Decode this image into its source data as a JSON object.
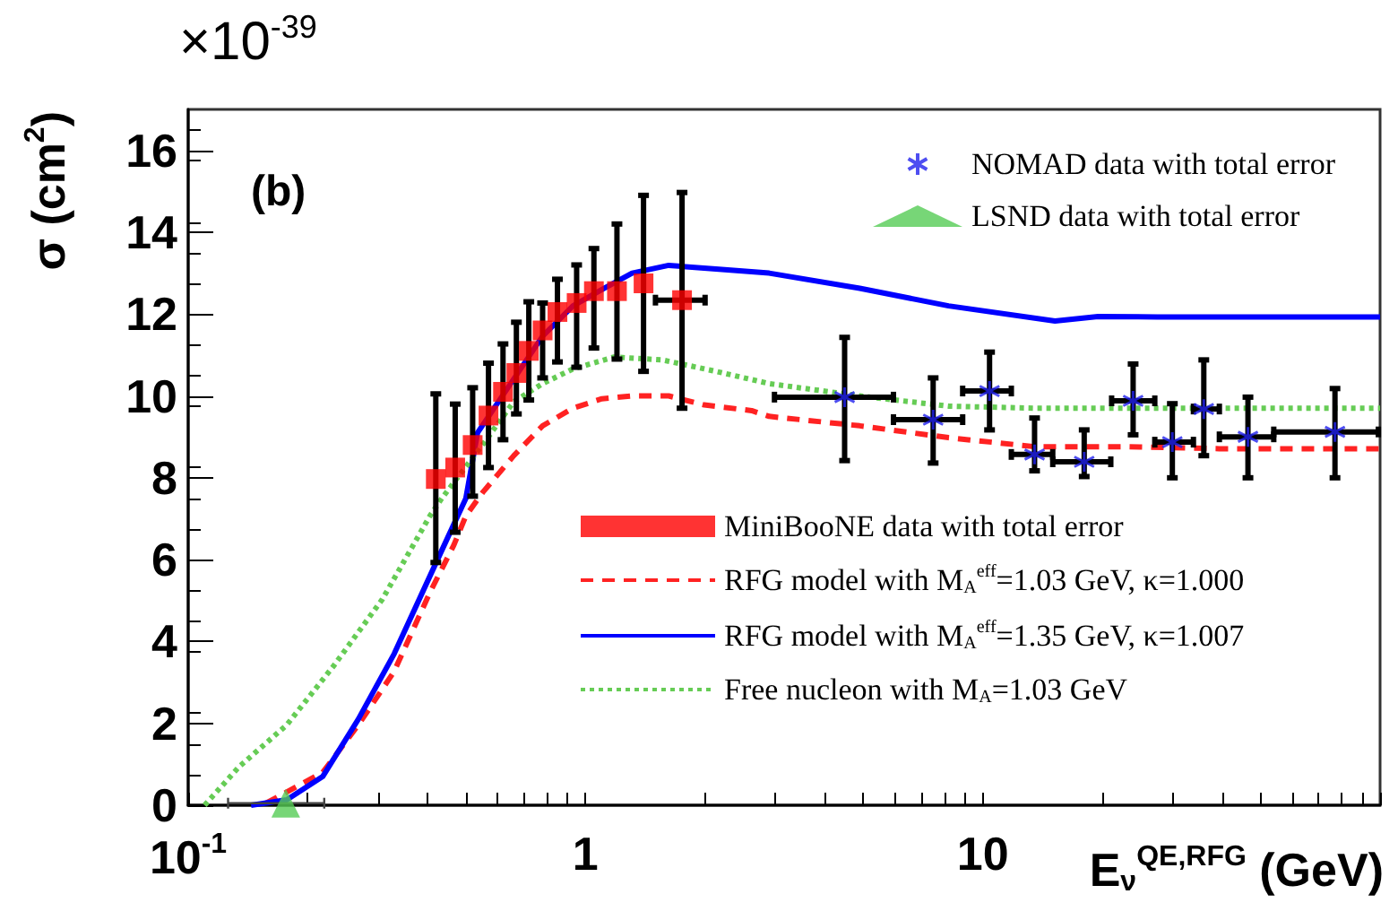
{
  "chart_data": {
    "type": "scatter",
    "xlabel": "E$_{ν}$$^{QE,RFG}$ (GeV)",
    "ylabel": "σ (cm$^{2}$)",
    "annotations": [
      "×10$^{-39}$",
      "(b)"
    ],
    "log": "x",
    "xlim": [
      0.1,
      100
    ],
    "xticks": [
      {
        "value": 0.1,
        "label": "10$^{-1}$"
      },
      {
        "value": 0.2,
        "label": null
      },
      {
        "value": 0.3,
        "label": null
      },
      {
        "value": 0.4,
        "label": null
      },
      {
        "value": 0.5,
        "label": null
      },
      {
        "value": 0.6,
        "label": null
      },
      {
        "value": 0.7,
        "label": null
      },
      {
        "value": 0.8,
        "label": null
      },
      {
        "value": 0.9,
        "label": null
      },
      1,
      {
        "value": 2,
        "label": null
      },
      {
        "value": 3,
        "label": null
      },
      {
        "value": 4,
        "label": null
      },
      {
        "value": 5,
        "label": null
      },
      {
        "value": 6,
        "label": null
      },
      {
        "value": 7,
        "label": null
      },
      {
        "value": 8,
        "label": null
      },
      {
        "value": 9,
        "label": null
      },
      10,
      {
        "value": 20,
        "label": null
      },
      {
        "value": 30,
        "label": null
      },
      {
        "value": 40,
        "label": null
      },
      {
        "value": 50,
        "label": null
      },
      {
        "value": 60,
        "label": null
      },
      {
        "value": 70,
        "label": null
      },
      {
        "value": 80,
        "label": null
      },
      {
        "value": 90,
        "label": null
      },
      {
        "value": 100,
        "label": null
      }
    ],
    "ylim": [
      0,
      17
    ],
    "yticks": [
      0,
      2,
      4,
      6,
      8,
      10,
      12,
      14,
      16
    ],
    "grid": false,
    "legend": "top right",
    "series": [
      {
        "name": "NOMAD data with total error",
        "marker": "cross",
        "color": "#2222ee",
        "x": [
          4.49,
          7.5,
          10.4,
          13.5,
          18.0,
          23.9,
          30.0,
          36.0,
          46.5,
          77
        ],
        "values": [
          9.97,
          9.42,
          10.12,
          8.57,
          8.39,
          9.88,
          8.87,
          9.68,
          9.0,
          9.12
        ],
        "errors": [
          [
            8.42,
            11.43
          ],
          [
            8.36,
            10.44
          ],
          [
            9.17,
            11.07
          ],
          [
            8.17,
            9.46
          ],
          [
            8.03,
            9.17
          ],
          [
            9.05,
            10.78
          ],
          [
            8.0,
            9.81
          ],
          [
            8.54,
            10.88
          ],
          [
            8.0,
            9.97
          ],
          [
            8.0,
            10.18
          ]
        ],
        "xerrors": [
          [
            2.99,
            5.96
          ],
          [
            5.96,
            8.9
          ],
          [
            8.9,
            11.8
          ],
          [
            11.8,
            15.0
          ],
          [
            15.0,
            21.0
          ],
          [
            21.1,
            27.1
          ],
          [
            27.1,
            33.9
          ],
          [
            33.9,
            39.4
          ],
          [
            39.4,
            54
          ],
          [
            54,
            99
          ]
        ]
      },
      {
        "name": "LSND data with total error",
        "marker": "triangle",
        "color": "#55cc55",
        "x": [
          0.176
        ],
        "values": [
          0.05
        ],
        "xerrors": [
          [
            0.126,
            0.22
          ]
        ]
      },
      {
        "name": "MiniBooNE data with total error",
        "marker": "square",
        "color": "#ff0000",
        "x": [
          0.42,
          0.47,
          0.52,
          0.57,
          0.62,
          0.67,
          0.72,
          0.78,
          0.85,
          0.95,
          1.05,
          1.2,
          1.4,
          1.75
        ],
        "values": [
          7.97,
          8.25,
          8.8,
          9.52,
          10.1,
          10.56,
          11.1,
          11.6,
          12.05,
          12.27,
          12.56,
          12.56,
          12.75,
          12.34
        ],
        "errors": [
          [
            5.93,
            10.05
          ],
          [
            6.67,
            9.8
          ],
          [
            7.55,
            10.2
          ],
          [
            8.25,
            10.8
          ],
          [
            8.93,
            11.27
          ],
          [
            9.56,
            11.8
          ],
          [
            9.9,
            12.3
          ],
          [
            10.44,
            12.27
          ],
          [
            10.83,
            12.85
          ],
          [
            10.7,
            13.2
          ],
          [
            11.17,
            13.6
          ],
          [
            10.9,
            14.2
          ],
          [
            10.6,
            14.9
          ],
          [
            9.7,
            14.97
          ]
        ],
        "xerrors": [
          null,
          null,
          null,
          null,
          null,
          null,
          null,
          null,
          null,
          null,
          null,
          null,
          null,
          [
            1.5,
            2.0
          ]
        ]
      },
      {
        "name": "RFG model with M$_{A}$$^{eff}$=1.03 GeV, κ=1.000",
        "type": "line",
        "line_style": "dashed",
        "color": "#ff2222",
        "x": [
          0.157,
          0.218,
          0.268,
          0.33,
          0.406,
          0.466,
          0.5,
          0.553,
          0.66,
          0.78,
          0.93,
          1.1,
          1.31,
          1.62,
          1.99,
          2.62,
          2.9,
          4.9,
          8.2,
          13.5,
          23.1,
          39.4,
          100
        ],
        "values": [
          0.05,
          0.8,
          1.96,
          3.27,
          5.2,
          6.35,
          7.07,
          7.66,
          8.54,
          9.27,
          9.7,
          9.93,
          10.0,
          10.0,
          9.78,
          9.64,
          9.5,
          9.27,
          8.98,
          8.76,
          8.76,
          8.71,
          8.71
        ]
      },
      {
        "name": "RFG model with M$_{A}$$^{eff}$=1.35 GeV, κ=1.007",
        "type": "line",
        "line_style": "solid",
        "color": "#0000ff",
        "x": [
          0.144,
          0.177,
          0.218,
          0.268,
          0.33,
          0.406,
          0.5,
          0.535,
          0.78,
          0.93,
          1.1,
          1.31,
          1.62,
          2.13,
          2.9,
          4.9,
          8.2,
          15.2,
          19.5,
          27.5,
          100
        ],
        "values": [
          0,
          0.13,
          0.7,
          2.1,
          3.7,
          5.6,
          7.5,
          9.1,
          11.46,
          12.2,
          12.6,
          13.0,
          13.19,
          13.1,
          13.0,
          12.63,
          12.2,
          11.83,
          11.94,
          11.93,
          11.93
        ]
      },
      {
        "name": "Free nucleon with M$_{A}$=1.03 GeV",
        "type": "line",
        "line_style": "dotted",
        "color": "#66cc55",
        "x": [
          0.11,
          0.134,
          0.177,
          0.233,
          0.308,
          0.406,
          0.435,
          0.553,
          0.66,
          0.78,
          0.93,
          1.18,
          1.56,
          2.13,
          2.9,
          4.9,
          8.2,
          13.5,
          100
        ],
        "values": [
          0,
          0.93,
          1.96,
          3.42,
          5.03,
          7.07,
          7.5,
          8.83,
          9.86,
          10.3,
          10.66,
          10.95,
          10.88,
          10.6,
          10.3,
          10.0,
          9.75,
          9.7,
          9.7
        ]
      }
    ]
  }
}
